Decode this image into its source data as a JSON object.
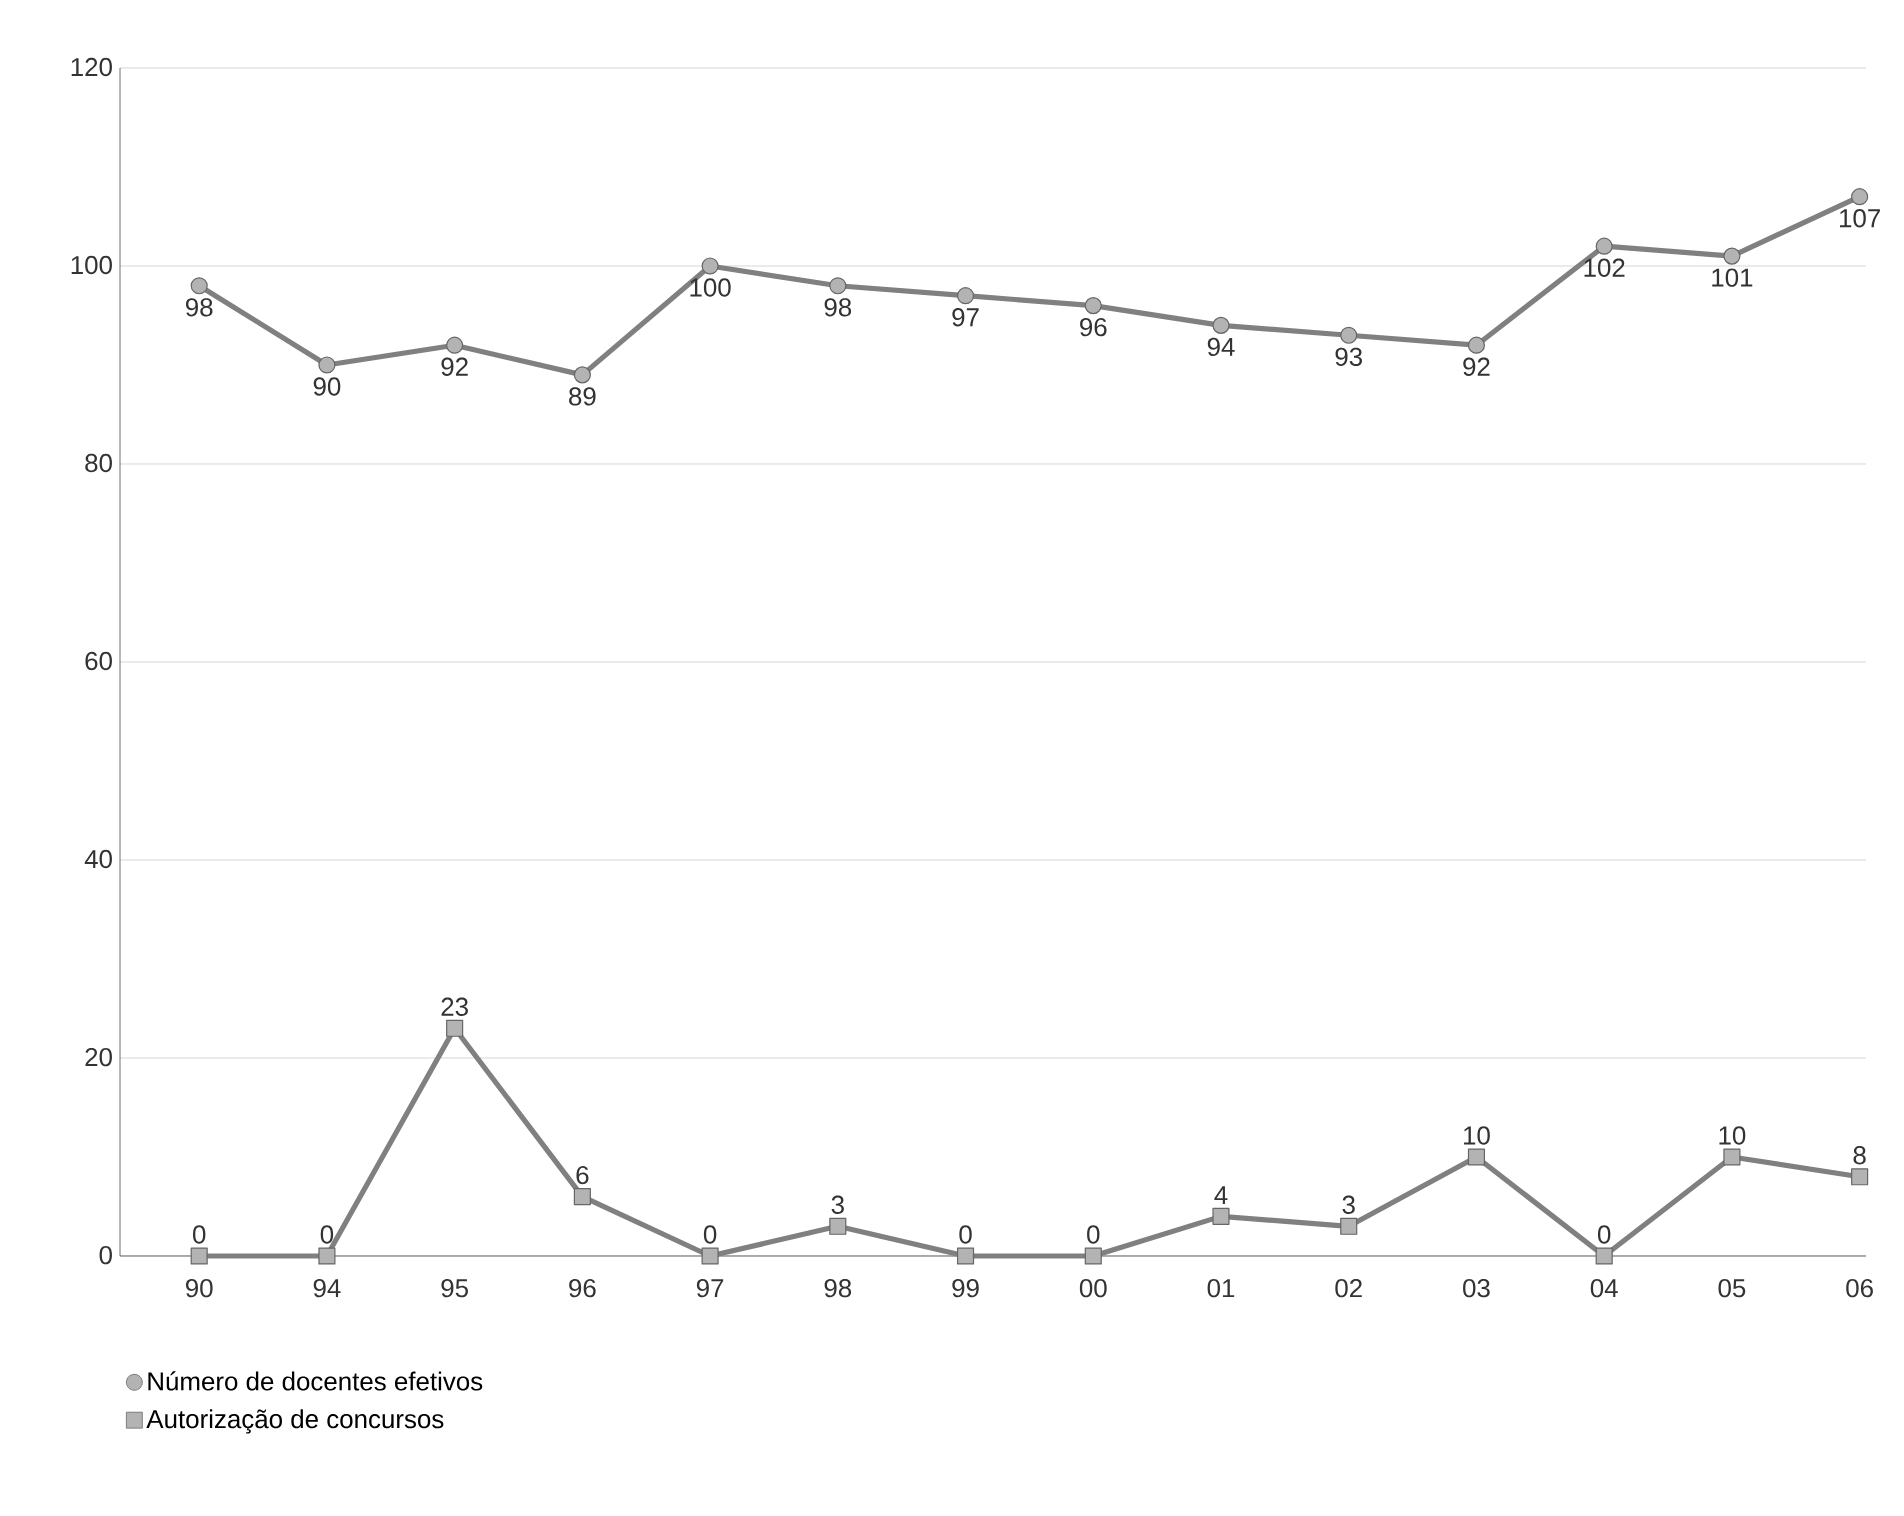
{
  "chart_data": {
    "type": "line",
    "categories": [
      "90",
      "94",
      "95",
      "96",
      "97",
      "98",
      "99",
      "00",
      "01",
      "02",
      "03",
      "04",
      "05",
      "06"
    ],
    "series": [
      {
        "name": "Número de docentes efetivos",
        "color": "#808080",
        "marker": "circle",
        "values": [
          98,
          90,
          92,
          89,
          100,
          98,
          97,
          96,
          94,
          93,
          92,
          102,
          101,
          107
        ]
      },
      {
        "name": "Autorização de concursos",
        "color": "#808080",
        "marker": "square",
        "values": [
          0,
          0,
          23,
          6,
          0,
          3,
          0,
          0,
          4,
          3,
          10,
          0,
          10,
          8
        ]
      }
    ],
    "ylim": [
      0,
      120
    ],
    "yticks": [
      0,
      20,
      40,
      60,
      80,
      100,
      120
    ],
    "grid": "y",
    "legend": "bottom left",
    "data_labels": true,
    "line_style": "solid"
  }
}
